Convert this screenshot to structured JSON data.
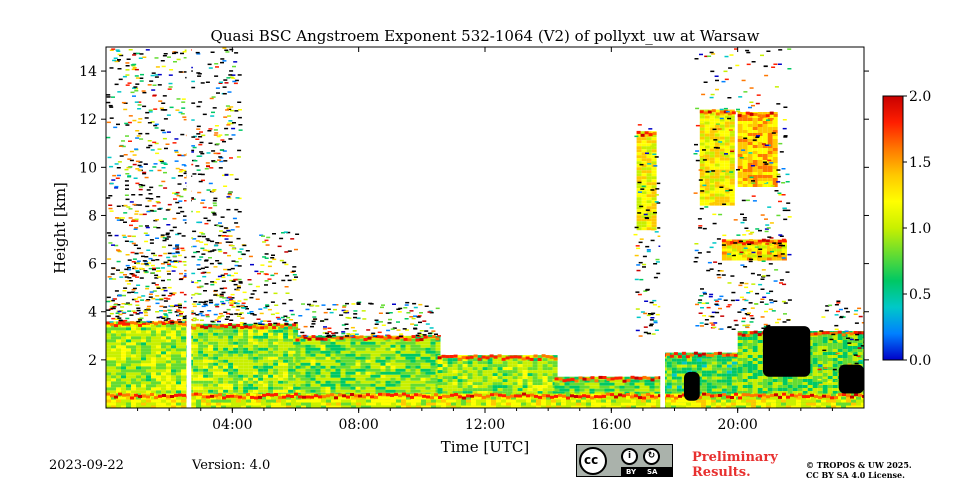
{
  "chart_data": {
    "type": "heatmap",
    "title": "Quasi BSC Angstroem Exponent 532-1064 (V2) of pollyxt_uw at Warsaw",
    "xlabel": "Time [UTC]",
    "ylabel": "Height [km]",
    "xlim": [
      0,
      24
    ],
    "ylim": [
      0,
      15
    ],
    "x_ticks": [
      {
        "value": 4,
        "label": "04:00"
      },
      {
        "value": 8,
        "label": "08:00"
      },
      {
        "value": 12,
        "label": "12:00"
      },
      {
        "value": 16,
        "label": "16:00"
      },
      {
        "value": 20,
        "label": "20:00"
      }
    ],
    "y_ticks": [
      {
        "value": 2,
        "label": "2"
      },
      {
        "value": 4,
        "label": "4"
      },
      {
        "value": 6,
        "label": "6"
      },
      {
        "value": 8,
        "label": "8"
      },
      {
        "value": 10,
        "label": "10"
      },
      {
        "value": 12,
        "label": "12"
      },
      {
        "value": 14,
        "label": "14"
      }
    ],
    "colorbar": {
      "range": [
        0.0,
        2.0
      ],
      "ticks": [
        "0.0",
        "0.5",
        "1.0",
        "1.5",
        "2.0"
      ],
      "colormap": [
        "#0000c8",
        "#0080ff",
        "#00c8c8",
        "#00c864",
        "#64dc32",
        "#c8f000",
        "#ffff00",
        "#ffc800",
        "#ff7800",
        "#ff1e00",
        "#c80000"
      ]
    },
    "grid": false,
    "regions": [
      {
        "x": [
          0.0,
          2.6
        ],
        "y": [
          0.0,
          3.6
        ],
        "value": 0.95
      },
      {
        "x": [
          2.6,
          6.0
        ],
        "y": [
          0.0,
          3.5
        ],
        "value": 0.9
      },
      {
        "x": [
          6.0,
          10.5
        ],
        "y": [
          0.0,
          3.0
        ],
        "value": 0.85
      },
      {
        "x": [
          10.5,
          14.2
        ],
        "y": [
          0.0,
          2.2
        ],
        "value": 0.9
      },
      {
        "x": [
          14.2,
          17.6
        ],
        "y": [
          0.0,
          1.3
        ],
        "value": 0.8
      },
      {
        "x": [
          17.6,
          20.0
        ],
        "y": [
          0.0,
          2.3
        ],
        "value": 0.75
      },
      {
        "x": [
          20.0,
          24.0
        ],
        "y": [
          0.0,
          3.2
        ],
        "value": 0.8
      },
      {
        "x": [
          0.0,
          24.0
        ],
        "y": [
          0.0,
          0.6
        ],
        "value": 1.1
      },
      {
        "x": [
          16.8,
          17.4
        ],
        "y": [
          7.5,
          11.5
        ],
        "value": 1.2
      },
      {
        "x": [
          18.8,
          19.9
        ],
        "y": [
          8.5,
          12.4
        ],
        "value": 1.2
      },
      {
        "x": [
          20.0,
          21.2
        ],
        "y": [
          9.3,
          12.3
        ],
        "value": 1.4
      },
      {
        "x": [
          19.5,
          21.4
        ],
        "y": [
          6.2,
          7.0
        ],
        "value": 1.3
      }
    ],
    "strong_absorption": [
      {
        "x": [
          20.8,
          22.3
        ],
        "y": [
          1.3,
          3.4
        ]
      },
      {
        "x": [
          18.3,
          18.8
        ],
        "y": [
          0.3,
          1.5
        ]
      },
      {
        "x": [
          23.2,
          24.0
        ],
        "y": [
          0.6,
          1.8
        ]
      }
    ],
    "data_gaps": [
      {
        "x": [
          2.55,
          2.7
        ]
      },
      {
        "x": [
          17.55,
          17.7
        ]
      }
    ]
  },
  "footer": {
    "date": "2023-09-22",
    "version": "Version: 4.0",
    "cc_by": "BY",
    "cc_sa": "SA",
    "cc_mark": "cc",
    "preliminary_line1": "Preliminary",
    "preliminary_line2": "Results.",
    "copyright_line1": "© TROPOS & UW 2025.",
    "copyright_line2": "CC BY SA 4.0 License."
  }
}
